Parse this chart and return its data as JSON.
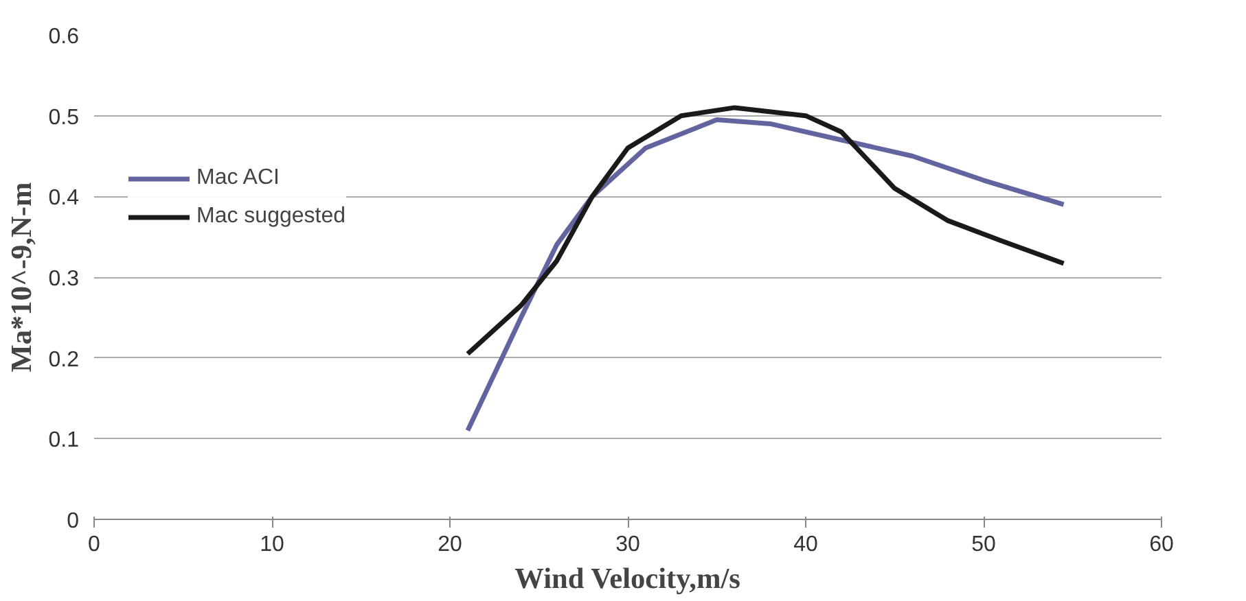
{
  "chart_data": {
    "type": "line",
    "xlabel": "Wind Velocity,m/s",
    "ylabel": "Ma*10^-9,N-m",
    "xlim": [
      0,
      60
    ],
    "xticks": [
      0,
      10,
      20,
      30,
      40,
      50,
      60
    ],
    "ylim": [
      0,
      0.6
    ],
    "yticks": [
      0,
      0.1,
      0.2,
      0.3,
      0.4,
      0.5,
      0.6
    ],
    "grid": "y",
    "legend": "top left",
    "marker": "none",
    "line_style": "solid",
    "series": [
      {
        "name": "Mac ACI",
        "color": "#6264a0",
        "x": [
          21,
          24,
          26,
          28,
          31,
          35,
          38,
          42,
          46,
          50,
          54.5
        ],
        "values": [
          0.11,
          0.25,
          0.34,
          0.4,
          0.46,
          0.495,
          0.49,
          0.47,
          0.45,
          0.42,
          0.39
        ]
      },
      {
        "name": "Mac suggested",
        "color": "#1a1a1a",
        "x": [
          21,
          24,
          26,
          28,
          30,
          33,
          36,
          40,
          42,
          45,
          48,
          51,
          54.5
        ],
        "values": [
          0.205,
          0.265,
          0.32,
          0.4,
          0.46,
          0.5,
          0.51,
          0.5,
          0.48,
          0.41,
          0.37,
          0.345,
          0.317
        ]
      }
    ]
  }
}
